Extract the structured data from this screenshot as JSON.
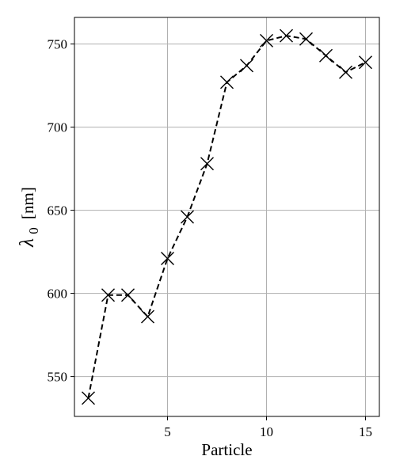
{
  "chart_data": {
    "type": "line",
    "title": "",
    "xlabel": "Particle",
    "ylabel": {
      "symbol": "λ",
      "subscript": "0",
      "unit": "[nm]"
    },
    "x": [
      1,
      2,
      3,
      4,
      5,
      6,
      7,
      8,
      9,
      10,
      11,
      12,
      13,
      14,
      15
    ],
    "series": [
      {
        "values": [
          537,
          599,
          599,
          586,
          621,
          646,
          678,
          727,
          737,
          752,
          755,
          753,
          743,
          733,
          739
        ],
        "color": "#000000",
        "line_style": "dashed",
        "marker": "x"
      }
    ],
    "xlim": [
      0.3,
      15.7
    ],
    "ylim": [
      526,
      766
    ],
    "xticks": [
      5,
      10,
      15
    ],
    "yticks": [
      550,
      600,
      650,
      700,
      750
    ],
    "grid": true,
    "legend": "none"
  }
}
